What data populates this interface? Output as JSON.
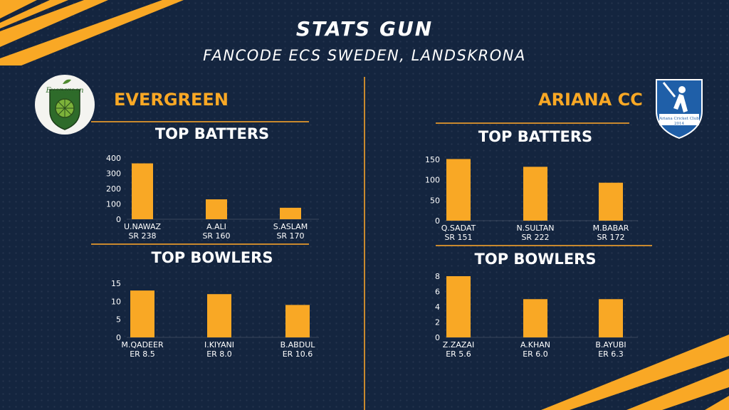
{
  "header": {
    "title": "STATS GUN",
    "subtitle": "FANCODE ECS SWEDEN, LANDSKRONA"
  },
  "colors": {
    "background": "#14253f",
    "accent": "#f9a825",
    "divider": "#c9892e",
    "text": "#ffffff"
  },
  "teams": {
    "left": {
      "name": "EVERGREEN",
      "logo_text": "Evergreen",
      "logo_icon": "evergreen-club-logo"
    },
    "right": {
      "name": "ARIANA CC",
      "logo_text": "Ariana Cricket Club",
      "logo_year": "2014",
      "logo_icon": "ariana-cricket-club-logo"
    }
  },
  "chart_data": [
    {
      "id": "left-batters",
      "type": "bar",
      "title": "TOP BATTERS",
      "categories": [
        "U.NAWAZ",
        "A.ALI",
        "S.ASLAM"
      ],
      "sublabels": [
        "SR 238",
        "SR 160",
        "SR 170"
      ],
      "values": [
        365,
        130,
        75
      ],
      "ylim": [
        0,
        400
      ],
      "yticks": [
        0,
        100,
        200,
        300,
        400
      ],
      "grid": false,
      "legend": "none"
    },
    {
      "id": "left-bowlers",
      "type": "bar",
      "title": "TOP BOWLERS",
      "categories": [
        "M.QADEER",
        "I.KIYANI",
        "B.ABDUL"
      ],
      "sublabels": [
        "ER 8.5",
        "ER 8.0",
        "ER 10.6"
      ],
      "values": [
        13,
        12,
        9
      ],
      "ylim": [
        0,
        15
      ],
      "yticks": [
        0,
        5,
        10,
        15
      ],
      "grid": false,
      "legend": "none"
    },
    {
      "id": "right-batters",
      "type": "bar",
      "title": "TOP BATTERS",
      "categories": [
        "Q.SADAT",
        "N.SULTAN",
        "M.BABAR"
      ],
      "sublabels": [
        "SR 151",
        "SR 222",
        "SR 172"
      ],
      "values": [
        151,
        132,
        93
      ],
      "ylim": [
        0,
        150
      ],
      "yticks": [
        0,
        50,
        100,
        150
      ],
      "grid": false,
      "legend": "none"
    },
    {
      "id": "right-bowlers",
      "type": "bar",
      "title": "TOP BOWLERS",
      "categories": [
        "Z.ZAZAI",
        "A.KHAN",
        "B.AYUBI"
      ],
      "sublabels": [
        "ER 5.6",
        "ER 6.0",
        "ER 6.3"
      ],
      "values": [
        8,
        5,
        5
      ],
      "ylim": [
        0,
        8
      ],
      "yticks": [
        0,
        2,
        4,
        6,
        8
      ],
      "grid": false,
      "legend": "none"
    }
  ]
}
